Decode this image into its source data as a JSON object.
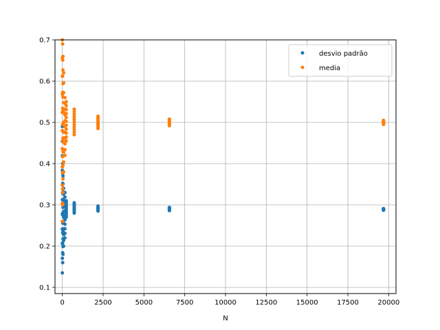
{
  "chart_data": {
    "type": "scatter",
    "title": "",
    "xlabel": "N",
    "ylabel": "",
    "xlim": [
      -450,
      20450
    ],
    "ylim": [
      0.085,
      0.7
    ],
    "xticks": [
      0,
      2500,
      5000,
      7500,
      10000,
      12500,
      15000,
      17500,
      20000
    ],
    "yticks": [
      0.1,
      0.2,
      0.3,
      0.4,
      0.5,
      0.6,
      0.7
    ],
    "grid": true,
    "legend": {
      "position": "top-right"
    },
    "series": [
      {
        "name": "desvio padrâo",
        "color": "#1f77b4",
        "clusters": [
          {
            "x": 0,
            "y_min": 0.135,
            "y_max": 0.49
          },
          {
            "x": 20,
            "y_min": 0.16,
            "y_max": 0.4
          },
          {
            "x": 40,
            "y_min": 0.18,
            "y_max": 0.37
          },
          {
            "x": 80,
            "y_min": 0.2,
            "y_max": 0.34
          },
          {
            "x": 160,
            "y_min": 0.22,
            "y_max": 0.33
          },
          {
            "x": 240,
            "y_min": 0.27,
            "y_max": 0.31
          },
          {
            "x": 729,
            "y_min": 0.28,
            "y_max": 0.305
          },
          {
            "x": 2187,
            "y_min": 0.285,
            "y_max": 0.297
          },
          {
            "x": 6561,
            "y_min": 0.286,
            "y_max": 0.294
          },
          {
            "x": 19683,
            "y_min": 0.287,
            "y_max": 0.291
          }
        ]
      },
      {
        "name": "media",
        "color": "#ff7f0e",
        "clusters": [
          {
            "x": 0,
            "y_min": 0.26,
            "y_max": 0.7
          },
          {
            "x": 20,
            "y_min": 0.3,
            "y_max": 0.69
          },
          {
            "x": 40,
            "y_min": 0.33,
            "y_max": 0.66
          },
          {
            "x": 80,
            "y_min": 0.38,
            "y_max": 0.62
          },
          {
            "x": 160,
            "y_min": 0.42,
            "y_max": 0.56
          },
          {
            "x": 240,
            "y_min": 0.455,
            "y_max": 0.55
          },
          {
            "x": 729,
            "y_min": 0.47,
            "y_max": 0.532
          },
          {
            "x": 2187,
            "y_min": 0.485,
            "y_max": 0.515
          },
          {
            "x": 6561,
            "y_min": 0.492,
            "y_max": 0.508
          },
          {
            "x": 19683,
            "y_min": 0.495,
            "y_max": 0.505
          }
        ]
      }
    ]
  }
}
